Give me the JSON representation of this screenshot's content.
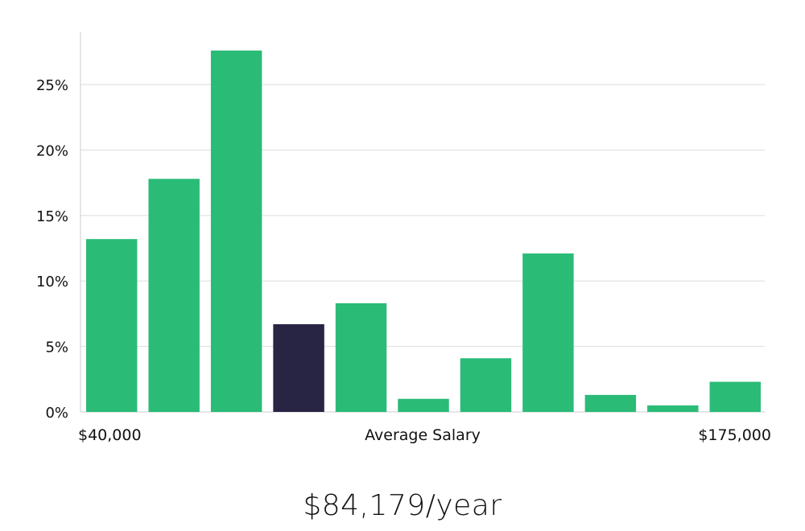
{
  "chart_data": {
    "type": "bar",
    "xlabel": "Average Salary",
    "x_min_label": "$40,000",
    "x_max_label": "$175,000",
    "y_ticks": [
      "0%",
      "5%",
      "10%",
      "15%",
      "20%",
      "25%"
    ],
    "ylim": [
      0,
      29
    ],
    "values": [
      13.2,
      17.8,
      27.6,
      6.7,
      8.3,
      1.0,
      4.1,
      12.1,
      1.3,
      0.5,
      2.3
    ],
    "highlight_index": 3,
    "colors": {
      "bar": "#2abb77",
      "highlight": "#282444",
      "grid": "#dddddd",
      "axis": "#cccccc"
    }
  },
  "salary_text": "$84,179/year"
}
